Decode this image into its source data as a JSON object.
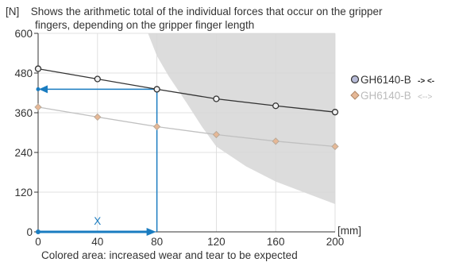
{
  "header": {
    "unit": "[N]",
    "line1": "Shows the arithmetic total of the individual forces that occur on the gripper",
    "line2": "fingers, depending on the gripper finger length"
  },
  "footer": "Colored area: increased wear and tear to be expected",
  "chart_data": {
    "type": "line",
    "x_unit_label": "[mm]",
    "y_unit_label": "[N]",
    "xlim": [
      0,
      200
    ],
    "ylim": [
      0,
      600
    ],
    "x_ticks": [
      0,
      40,
      80,
      120,
      160,
      200
    ],
    "y_ticks": [
      0,
      120,
      240,
      360,
      480,
      600
    ],
    "x_tick_labels": [
      "0",
      "40",
      "80",
      "120",
      "160",
      "200"
    ],
    "y_tick_labels": [
      "0",
      "120",
      "240",
      "360",
      "480",
      "600"
    ],
    "x": [
      0,
      40,
      80,
      120,
      160,
      200
    ],
    "series": [
      {
        "name": "GH6140-B",
        "legend_suffix": "-> <-",
        "color": "#333333",
        "marker": "circle",
        "values": [
          493,
          462,
          431,
          402,
          381,
          362
        ]
      },
      {
        "name": "GH6140-B",
        "legend_suffix": "<-->",
        "color": "#c0c0c0",
        "marker": "diamond",
        "values": [
          377,
          347,
          318,
          294,
          274,
          258
        ]
      }
    ],
    "shaded_region": {
      "label": "Colored area: increased wear and tear to be expected",
      "color": "#dcdcdc",
      "boundary": [
        [
          74,
          600
        ],
        [
          80,
          532
        ],
        [
          88,
          470
        ],
        [
          100,
          390
        ],
        [
          110,
          320
        ],
        [
          120,
          258
        ],
        [
          140,
          198
        ],
        [
          160,
          152
        ],
        [
          180,
          118
        ],
        [
          200,
          84
        ]
      ]
    },
    "reading_example": {
      "color": "#1a7cc0",
      "x": 80,
      "y": 431,
      "x_marker_label": "X"
    }
  }
}
